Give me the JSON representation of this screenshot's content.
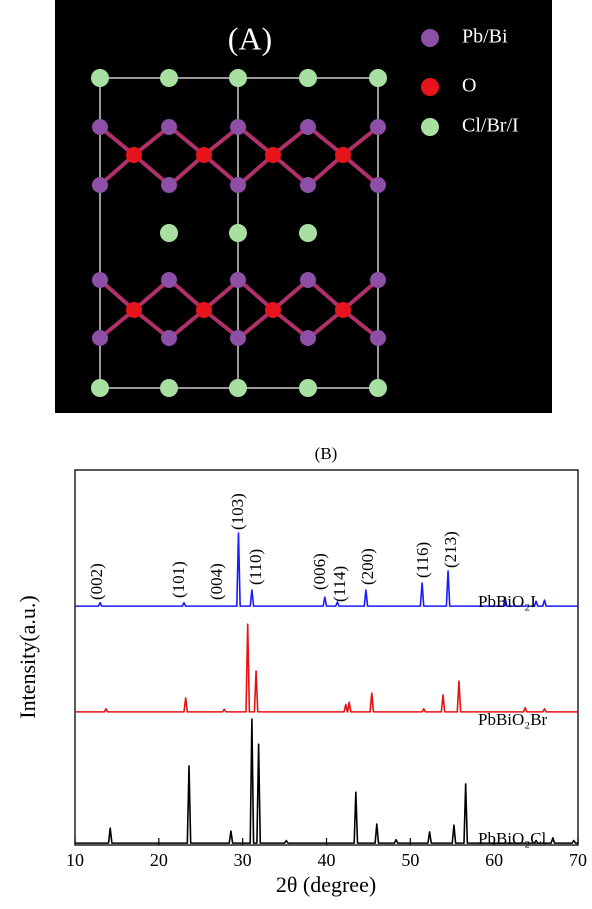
{
  "panel_a": {
    "label": "(A)",
    "legend": [
      {
        "name": "Pb/Bi",
        "color": "#8e4fa6"
      },
      {
        "name": "O",
        "color": "#e8141b"
      },
      {
        "name": "Cl/Br/I",
        "color": "#a8e0a2"
      }
    ]
  },
  "chart_data": {
    "type": "line",
    "title": "(B)",
    "x_label": "2θ (degree)",
    "y_label": "Intensity(a.u.)",
    "xlim": [
      10,
      70
    ],
    "xticks": [
      10,
      20,
      30,
      40,
      50,
      60,
      70
    ],
    "ylim": [
      0,
      100
    ],
    "series": [
      {
        "name": "PbBiO₂I",
        "color": "#1a1aff",
        "x": [
          10,
          12.8,
          13,
          13.2,
          22.8,
          23,
          23.2,
          29.3,
          29.5,
          29.7,
          30.9,
          31.1,
          31.3,
          39.6,
          39.8,
          40,
          41.1,
          41.3,
          41.5,
          44.5,
          44.7,
          44.9,
          51.2,
          51.4,
          51.6,
          54.3,
          54.5,
          54.7,
          61.1,
          61.3,
          61.5,
          64.8,
          65,
          65.2,
          65.8,
          66,
          66.2,
          70
        ],
        "values": [
          63.7,
          63.7,
          64.6,
          63.7,
          63.7,
          64.6,
          63.7,
          63.7,
          83.2,
          63.7,
          63.7,
          68,
          63.7,
          63.7,
          66.1,
          63.7,
          63.7,
          64.8,
          63.7,
          63.7,
          68,
          63.7,
          63.7,
          69.9,
          63.7,
          63.7,
          73.1,
          63.7,
          63.7,
          66.1,
          63.7,
          63.7,
          65,
          63.7,
          63.7,
          65.3,
          63.7,
          63.7
        ]
      },
      {
        "name": "PbBiO₂Br",
        "color": "#e81010",
        "x": [
          10,
          13.5,
          13.7,
          13.9,
          23,
          23.2,
          23.4,
          27.6,
          27.8,
          28,
          30.4,
          30.6,
          30.8,
          31.4,
          31.6,
          31.8,
          42.1,
          42.3,
          42.48,
          42.52,
          42.7,
          42.9,
          45.2,
          45.4,
          45.6,
          51.4,
          51.6,
          51.8,
          53.7,
          53.9,
          54.1,
          55.6,
          55.8,
          56,
          63.5,
          63.7,
          63.9,
          65.8,
          66,
          66.2,
          70
        ],
        "values": [
          35.5,
          35.5,
          36.3,
          35.5,
          35.5,
          39.2,
          35.5,
          35.5,
          36.2,
          35.5,
          35.5,
          58.9,
          35.5,
          35.5,
          46.4,
          35.5,
          35.5,
          37.5,
          35.5,
          35.5,
          38.1,
          35.5,
          35.5,
          40.5,
          35.5,
          35.5,
          36.3,
          35.5,
          35.5,
          40,
          35.5,
          35.5,
          43.7,
          35.5,
          35.5,
          36.6,
          35.5,
          35.5,
          36.3,
          35.5,
          35.5
        ]
      },
      {
        "name": "PbBiO₂Cl",
        "color": "#000000",
        "x": [
          10,
          14,
          14.2,
          14.4,
          23.4,
          23.6,
          23.8,
          28.4,
          28.6,
          28.8,
          30.9,
          31.1,
          31.3,
          31.7,
          31.9,
          32.1,
          35,
          35.2,
          35.4,
          43.3,
          43.5,
          43.7,
          45.8,
          46,
          46.2,
          48.1,
          48.3,
          48.5,
          52.1,
          52.3,
          52.5,
          55,
          55.2,
          55.4,
          56.4,
          56.6,
          56.8,
          64.8,
          65,
          65.2,
          66.8,
          67,
          67.2,
          69.3,
          69.5,
          69.7,
          70
        ],
        "values": [
          0.5,
          0.5,
          4.5,
          0.5,
          0.5,
          21.1,
          0.5,
          0.5,
          3.7,
          0.5,
          0.5,
          33.6,
          0.5,
          0.5,
          26.9,
          0.5,
          0.5,
          1.2,
          0.5,
          0.5,
          14.1,
          0.5,
          0.5,
          5.6,
          0.5,
          0.5,
          1.4,
          0.5,
          0.5,
          3.5,
          0.5,
          0.5,
          5.3,
          0.5,
          0.5,
          16.3,
          0.5,
          0.5,
          1.2,
          0.5,
          0.5,
          1.9,
          0.5,
          0.5,
          1.2,
          0.5,
          0.5
        ]
      }
    ],
    "annotations": [
      "(002)",
      "(101)",
      "(004)",
      "(103)",
      "(110)",
      "(006)",
      "(114)",
      "(200)",
      "(116)",
      "(213)"
    ]
  }
}
